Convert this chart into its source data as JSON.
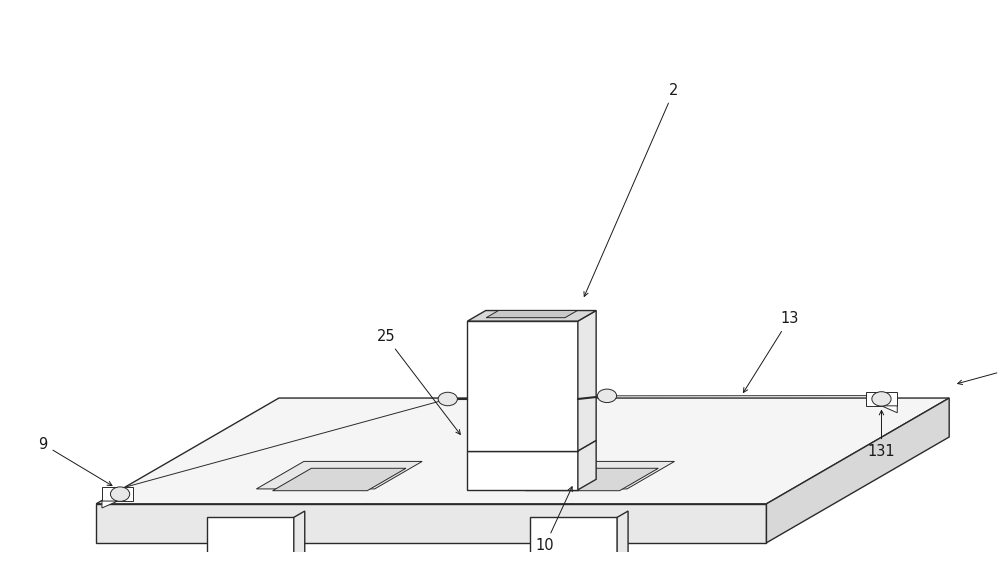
{
  "bg_color": "#ffffff",
  "line_color": "#2a2a2a",
  "lw": 1.0,
  "tlw": 0.7,
  "fc_light": "#f5f5f5",
  "fc_mid": "#e8e8e8",
  "fc_dark": "#d8d8d8",
  "fc_darker": "#c8c8c8",
  "annotation_color": "#1a1a1a",
  "annotation_fontsize": 10.5
}
